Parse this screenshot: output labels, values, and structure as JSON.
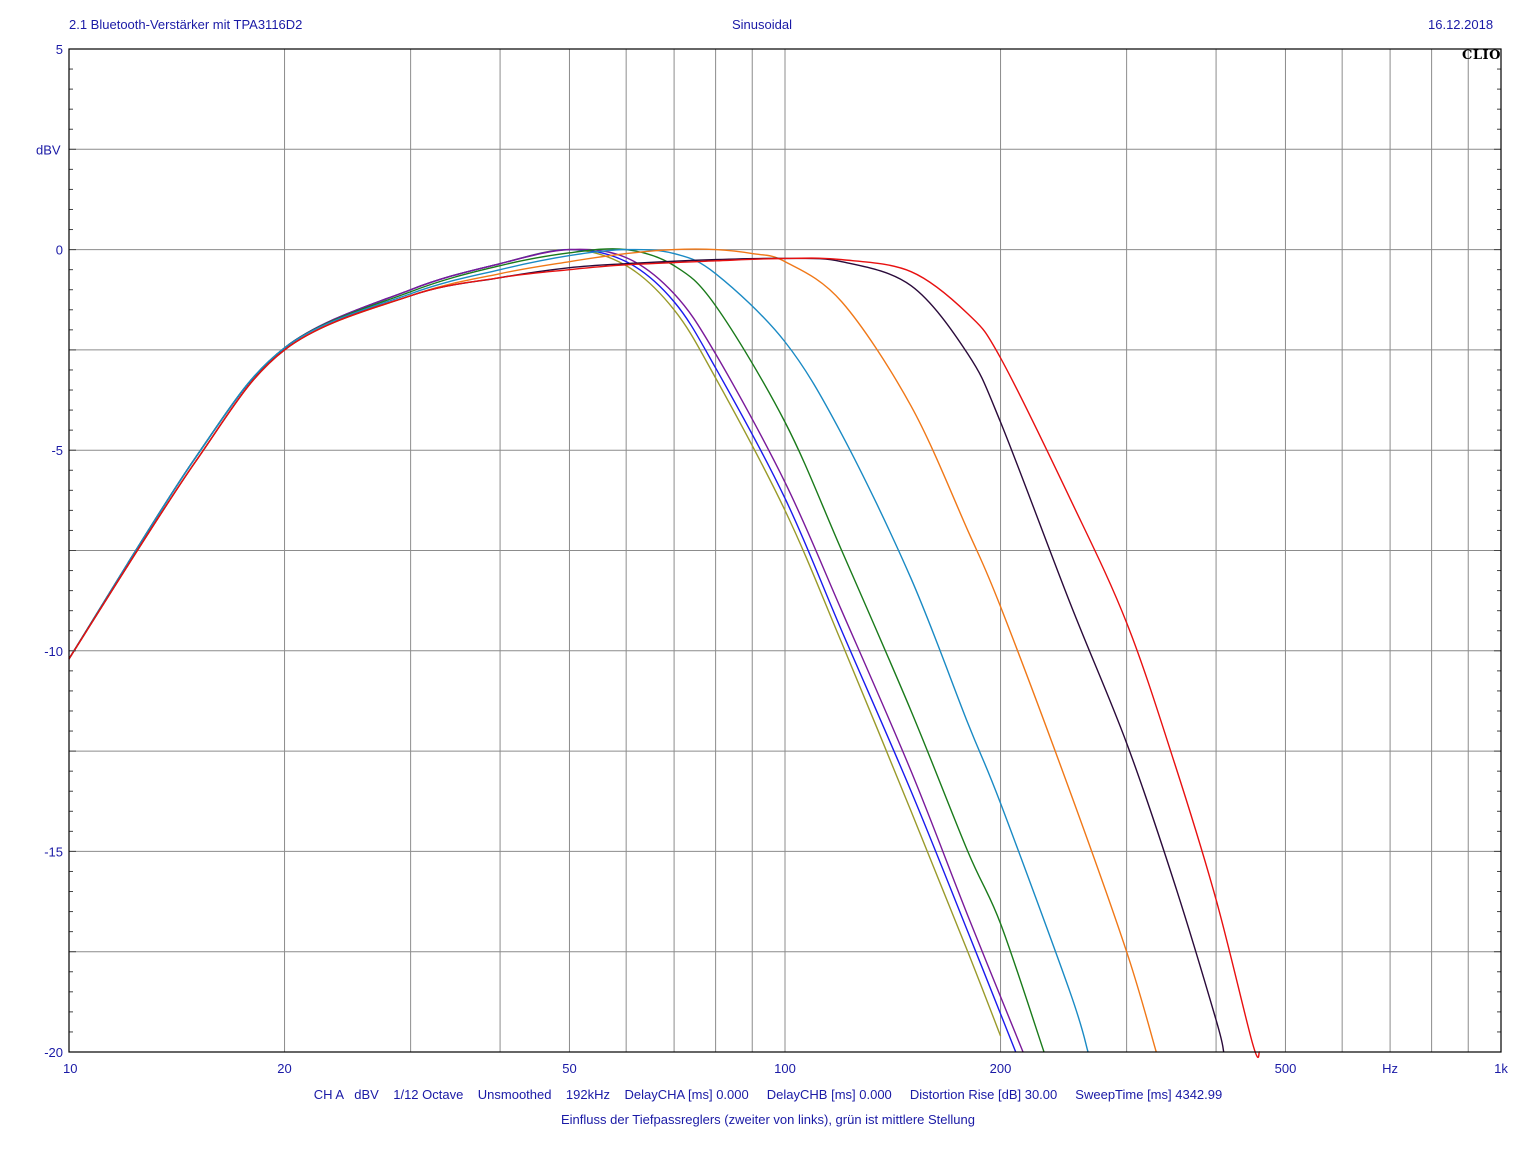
{
  "header": {
    "left": "2.1 Bluetooth-Verstärker mit TPA3116D2",
    "center": "Sinusoidal",
    "right": "16.12.2018",
    "brand": "CLIO"
  },
  "footer": {
    "settings": "CH A   dBV    1/12 Octave    Unsmoothed    192kHz    DelayCHA [ms] 0.000     DelayCHB [ms] 0.000     Distortion Rise [dB] 30.00     SweepTime [ms] 4342.99",
    "caption": "Einfluss der Tiefpassreglers (zweiter von links), grün ist mittlere Stellung"
  },
  "chart_data": {
    "type": "line",
    "x_scale": "log",
    "xlim": [
      10,
      1000
    ],
    "ylim": [
      -20,
      5
    ],
    "ylabel": "dBV",
    "xunit": "Hz",
    "grid": true,
    "x_ticks": [
      {
        "value": 10,
        "label": "10"
      },
      {
        "value": 20,
        "label": "20"
      },
      {
        "value": 50,
        "label": "50"
      },
      {
        "value": 100,
        "label": "100"
      },
      {
        "value": 200,
        "label": "200"
      },
      {
        "value": 500,
        "label": "500"
      },
      {
        "value": 1000,
        "label": "1k"
      }
    ],
    "y_ticks": [
      {
        "value": 5,
        "label": "5"
      },
      {
        "value": 0,
        "label": "0"
      },
      {
        "value": -5,
        "label": "-5"
      },
      {
        "value": -10,
        "label": "-10"
      },
      {
        "value": -15,
        "label": "-15"
      },
      {
        "value": -20,
        "label": "-20"
      }
    ],
    "series": [
      {
        "color": "#9a9a2a",
        "points": [
          [
            10,
            -10.2
          ],
          [
            15,
            -5.2
          ],
          [
            20,
            -2.45
          ],
          [
            30,
            -1.0
          ],
          [
            40,
            -0.35
          ],
          [
            50,
            0.0
          ],
          [
            60,
            -0.4
          ],
          [
            70,
            -1.5
          ],
          [
            80,
            -3.2
          ],
          [
            100,
            -6.5
          ],
          [
            120,
            -9.8
          ],
          [
            150,
            -14.0
          ],
          [
            180,
            -17.5
          ],
          [
            200,
            -19.6
          ]
        ]
      },
      {
        "color": "#1a1aee",
        "points": [
          [
            10,
            -10.2
          ],
          [
            15,
            -5.2
          ],
          [
            20,
            -2.45
          ],
          [
            30,
            -1.0
          ],
          [
            40,
            -0.35
          ],
          [
            50,
            0.0
          ],
          [
            60,
            -0.3
          ],
          [
            70,
            -1.3
          ],
          [
            80,
            -2.95
          ],
          [
            100,
            -6.2
          ],
          [
            120,
            -9.5
          ],
          [
            150,
            -13.5
          ],
          [
            180,
            -17.0
          ],
          [
            210,
            -20.0
          ]
        ]
      },
      {
        "color": "#7a1a9a",
        "points": [
          [
            10,
            -10.2
          ],
          [
            15,
            -5.2
          ],
          [
            20,
            -2.45
          ],
          [
            30,
            -1.0
          ],
          [
            40,
            -0.35
          ],
          [
            50,
            0.0
          ],
          [
            60,
            -0.2
          ],
          [
            70,
            -1.1
          ],
          [
            80,
            -2.6
          ],
          [
            100,
            -5.8
          ],
          [
            120,
            -9.0
          ],
          [
            150,
            -13.0
          ],
          [
            180,
            -16.6
          ],
          [
            215,
            -20.0
          ]
        ]
      },
      {
        "color": "#1a7a1a",
        "points": [
          [
            10,
            -10.2
          ],
          [
            15,
            -5.2
          ],
          [
            20,
            -2.45
          ],
          [
            30,
            -1.05
          ],
          [
            40,
            -0.4
          ],
          [
            50,
            -0.08
          ],
          [
            60,
            0.0
          ],
          [
            70,
            -0.4
          ],
          [
            80,
            -1.4
          ],
          [
            100,
            -4.3
          ],
          [
            120,
            -7.5
          ],
          [
            150,
            -11.5
          ],
          [
            180,
            -15.0
          ],
          [
            200,
            -16.8
          ],
          [
            230,
            -20.0
          ]
        ]
      },
      {
        "color": "#1a8ac4",
        "points": [
          [
            10,
            -10.2
          ],
          [
            15,
            -5.2
          ],
          [
            20,
            -2.45
          ],
          [
            30,
            -1.1
          ],
          [
            40,
            -0.5
          ],
          [
            50,
            -0.15
          ],
          [
            60,
            0.0
          ],
          [
            70,
            -0.1
          ],
          [
            80,
            -0.6
          ],
          [
            100,
            -2.3
          ],
          [
            120,
            -4.6
          ],
          [
            150,
            -8.2
          ],
          [
            180,
            -11.8
          ],
          [
            200,
            -13.8
          ],
          [
            250,
            -18.5
          ],
          [
            265,
            -20.0
          ]
        ]
      },
      {
        "color": "#f07818",
        "points": [
          [
            10,
            -10.2
          ],
          [
            15,
            -5.3
          ],
          [
            20,
            -2.5
          ],
          [
            30,
            -1.15
          ],
          [
            40,
            -0.6
          ],
          [
            50,
            -0.3
          ],
          [
            60,
            -0.1
          ],
          [
            70,
            0.0
          ],
          [
            80,
            0.0
          ],
          [
            90,
            -0.1
          ],
          [
            100,
            -0.3
          ],
          [
            120,
            -1.3
          ],
          [
            150,
            -3.9
          ],
          [
            180,
            -7.0
          ],
          [
            200,
            -8.9
          ],
          [
            250,
            -13.5
          ],
          [
            300,
            -17.5
          ],
          [
            330,
            -20.0
          ]
        ]
      },
      {
        "color": "#2a0a3a",
        "points": [
          [
            10,
            -10.2
          ],
          [
            15,
            -5.3
          ],
          [
            20,
            -2.5
          ],
          [
            30,
            -1.15
          ],
          [
            40,
            -0.7
          ],
          [
            50,
            -0.45
          ],
          [
            60,
            -0.35
          ],
          [
            80,
            -0.25
          ],
          [
            100,
            -0.22
          ],
          [
            120,
            -0.3
          ],
          [
            150,
            -0.9
          ],
          [
            180,
            -2.6
          ],
          [
            200,
            -4.3
          ],
          [
            250,
            -8.8
          ],
          [
            300,
            -12.3
          ],
          [
            350,
            -15.8
          ],
          [
            400,
            -19.2
          ],
          [
            410,
            -20.0
          ]
        ]
      },
      {
        "color": "#e81010",
        "points": [
          [
            10,
            -10.2
          ],
          [
            15,
            -5.3
          ],
          [
            20,
            -2.5
          ],
          [
            30,
            -1.15
          ],
          [
            40,
            -0.7
          ],
          [
            50,
            -0.5
          ],
          [
            60,
            -0.38
          ],
          [
            80,
            -0.28
          ],
          [
            100,
            -0.22
          ],
          [
            120,
            -0.25
          ],
          [
            150,
            -0.55
          ],
          [
            180,
            -1.6
          ],
          [
            200,
            -2.7
          ],
          [
            250,
            -6.2
          ],
          [
            300,
            -9.3
          ],
          [
            350,
            -12.8
          ],
          [
            400,
            -16.2
          ],
          [
            450,
            -19.8
          ],
          [
            460,
            -20.0
          ]
        ]
      }
    ]
  }
}
